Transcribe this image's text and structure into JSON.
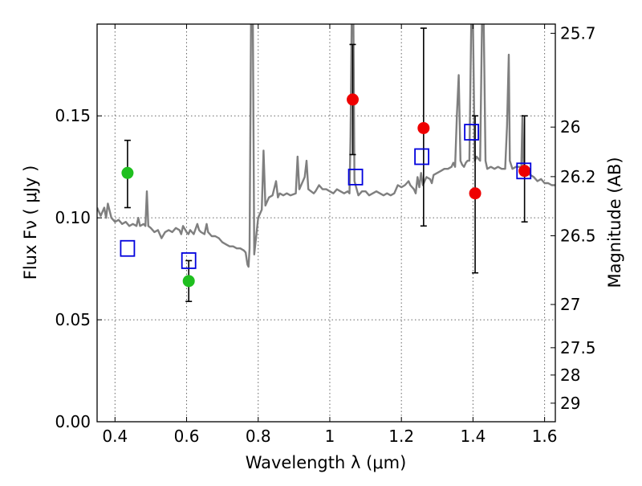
{
  "chart_data": {
    "type": "scatter",
    "xlabel": "Wavelength  λ (μm)",
    "ylabel": "Flux  Fν  ( μJy )",
    "y2label": "Magnitude (AB)",
    "xlim": [
      0.35,
      1.63
    ],
    "ylim": [
      0.0,
      0.195
    ],
    "xticks": [
      0.4,
      0.6,
      0.8,
      1.0,
      1.2,
      1.4,
      1.6
    ],
    "xtick_labels": [
      "0.4",
      "0.6",
      "0.8",
      "1",
      "1.2",
      "1.4",
      "1.6"
    ],
    "yticks": [
      0.0,
      0.05,
      0.1,
      0.15
    ],
    "ytick_labels": [
      "0.00",
      "0.05",
      "0.10",
      "0.15"
    ],
    "magnitude_ticks": [
      {
        "label": "25.7",
        "flux": 0.1905
      },
      {
        "label": "26",
        "flux": 0.1445
      },
      {
        "label": "26.2",
        "flux": 0.1202
      },
      {
        "label": "26.5",
        "flux": 0.0912
      },
      {
        "label": "27",
        "flux": 0.0575
      },
      {
        "label": "27.5",
        "flux": 0.0363
      },
      {
        "label": "28",
        "flux": 0.0229
      },
      {
        "label": "29",
        "flux": 0.0091
      }
    ],
    "grid": true,
    "colors": {
      "green": "#1fbf1f",
      "red": "#ee0000",
      "blue": "#0000dd",
      "spectrum": "#7f7f7f",
      "grid": "#666666"
    },
    "series": [
      {
        "marker": "circle",
        "color": "green",
        "points": [
          {
            "x": 0.435,
            "y": 0.122,
            "yerr_low": 0.105,
            "yerr_high": 0.138
          },
          {
            "x": 0.606,
            "y": 0.069,
            "yerr_low": 0.059,
            "yerr_high": 0.079
          }
        ]
      },
      {
        "marker": "circle",
        "color": "red",
        "points": [
          {
            "x": 1.064,
            "y": 0.158,
            "yerr_low": 0.131,
            "yerr_high": 0.185
          },
          {
            "x": 1.262,
            "y": 0.144,
            "yerr_low": 0.096,
            "yerr_high": 0.193
          },
          {
            "x": 1.406,
            "y": 0.112,
            "yerr_low": 0.073,
            "yerr_high": 0.15
          },
          {
            "x": 1.544,
            "y": 0.123,
            "yerr_low": 0.098,
            "yerr_high": 0.15
          }
        ]
      },
      {
        "marker": "square",
        "color": "blue",
        "points": [
          {
            "x": 0.435,
            "y": 0.085
          },
          {
            "x": 0.606,
            "y": 0.079
          },
          {
            "x": 1.072,
            "y": 0.12
          },
          {
            "x": 1.257,
            "y": 0.13
          },
          {
            "x": 1.396,
            "y": 0.142
          },
          {
            "x": 1.542,
            "y": 0.123
          }
        ]
      }
    ],
    "spectrum": [
      [
        0.35,
        0.105
      ],
      [
        0.36,
        0.101
      ],
      [
        0.37,
        0.105
      ],
      [
        0.375,
        0.1
      ],
      [
        0.38,
        0.107
      ],
      [
        0.39,
        0.1
      ],
      [
        0.4,
        0.098
      ],
      [
        0.41,
        0.099
      ],
      [
        0.42,
        0.097
      ],
      [
        0.43,
        0.098
      ],
      [
        0.44,
        0.096
      ],
      [
        0.45,
        0.097
      ],
      [
        0.46,
        0.096
      ],
      [
        0.465,
        0.1
      ],
      [
        0.47,
        0.096
      ],
      [
        0.48,
        0.097
      ],
      [
        0.485,
        0.096
      ],
      [
        0.489,
        0.113
      ],
      [
        0.493,
        0.096
      ],
      [
        0.5,
        0.095
      ],
      [
        0.51,
        0.093
      ],
      [
        0.52,
        0.094
      ],
      [
        0.53,
        0.09
      ],
      [
        0.54,
        0.093
      ],
      [
        0.55,
        0.094
      ],
      [
        0.56,
        0.093
      ],
      [
        0.57,
        0.095
      ],
      [
        0.58,
        0.094
      ],
      [
        0.585,
        0.092
      ],
      [
        0.59,
        0.096
      ],
      [
        0.6,
        0.093
      ],
      [
        0.605,
        0.092
      ],
      [
        0.61,
        0.094
      ],
      [
        0.62,
        0.092
      ],
      [
        0.63,
        0.097
      ],
      [
        0.635,
        0.094
      ],
      [
        0.64,
        0.093
      ],
      [
        0.65,
        0.092
      ],
      [
        0.656,
        0.097
      ],
      [
        0.66,
        0.093
      ],
      [
        0.67,
        0.091
      ],
      [
        0.68,
        0.091
      ],
      [
        0.69,
        0.09
      ],
      [
        0.7,
        0.088
      ],
      [
        0.71,
        0.087
      ],
      [
        0.72,
        0.086
      ],
      [
        0.73,
        0.086
      ],
      [
        0.74,
        0.085
      ],
      [
        0.75,
        0.085
      ],
      [
        0.76,
        0.084
      ],
      [
        0.765,
        0.083
      ],
      [
        0.77,
        0.077
      ],
      [
        0.773,
        0.076
      ],
      [
        0.776,
        0.085
      ],
      [
        0.78,
        0.195
      ],
      [
        0.785,
        0.195
      ],
      [
        0.789,
        0.082
      ],
      [
        0.8,
        0.1
      ],
      [
        0.81,
        0.104
      ],
      [
        0.815,
        0.133
      ],
      [
        0.82,
        0.106
      ],
      [
        0.83,
        0.11
      ],
      [
        0.84,
        0.111
      ],
      [
        0.85,
        0.118
      ],
      [
        0.855,
        0.11
      ],
      [
        0.86,
        0.112
      ],
      [
        0.87,
        0.111
      ],
      [
        0.88,
        0.112
      ],
      [
        0.89,
        0.111
      ],
      [
        0.905,
        0.112
      ],
      [
        0.91,
        0.13
      ],
      [
        0.915,
        0.114
      ],
      [
        0.93,
        0.12
      ],
      [
        0.935,
        0.128
      ],
      [
        0.94,
        0.114
      ],
      [
        0.955,
        0.112
      ],
      [
        0.96,
        0.113
      ],
      [
        0.97,
        0.116
      ],
      [
        0.98,
        0.114
      ],
      [
        0.99,
        0.114
      ],
      [
        1.0,
        0.113
      ],
      [
        1.01,
        0.112
      ],
      [
        1.02,
        0.114
      ],
      [
        1.03,
        0.113
      ],
      [
        1.04,
        0.112
      ],
      [
        1.05,
        0.113
      ],
      [
        1.055,
        0.112
      ],
      [
        1.058,
        0.14
      ],
      [
        1.061,
        0.195
      ],
      [
        1.066,
        0.195
      ],
      [
        1.069,
        0.118
      ],
      [
        1.08,
        0.111
      ],
      [
        1.09,
        0.113
      ],
      [
        1.1,
        0.113
      ],
      [
        1.11,
        0.111
      ],
      [
        1.12,
        0.112
      ],
      [
        1.13,
        0.113
      ],
      [
        1.14,
        0.112
      ],
      [
        1.15,
        0.111
      ],
      [
        1.16,
        0.112
      ],
      [
        1.17,
        0.111
      ],
      [
        1.18,
        0.112
      ],
      [
        1.185,
        0.114
      ],
      [
        1.19,
        0.116
      ],
      [
        1.2,
        0.115
      ],
      [
        1.21,
        0.116
      ],
      [
        1.215,
        0.117
      ],
      [
        1.22,
        0.118
      ],
      [
        1.225,
        0.116
      ],
      [
        1.235,
        0.114
      ],
      [
        1.24,
        0.112
      ],
      [
        1.245,
        0.12
      ],
      [
        1.25,
        0.115
      ],
      [
        1.255,
        0.122
      ],
      [
        1.26,
        0.116
      ],
      [
        1.27,
        0.12
      ],
      [
        1.28,
        0.119
      ],
      [
        1.285,
        0.117
      ],
      [
        1.29,
        0.121
      ],
      [
        1.3,
        0.122
      ],
      [
        1.31,
        0.123
      ],
      [
        1.32,
        0.124
      ],
      [
        1.33,
        0.124
      ],
      [
        1.34,
        0.125
      ],
      [
        1.345,
        0.127
      ],
      [
        1.35,
        0.125
      ],
      [
        1.355,
        0.15
      ],
      [
        1.36,
        0.17
      ],
      [
        1.365,
        0.128
      ],
      [
        1.37,
        0.126
      ],
      [
        1.375,
        0.125
      ],
      [
        1.38,
        0.127
      ],
      [
        1.385,
        0.128
      ],
      [
        1.39,
        0.128
      ],
      [
        1.395,
        0.195
      ],
      [
        1.4,
        0.195
      ],
      [
        1.405,
        0.128
      ],
      [
        1.41,
        0.13
      ],
      [
        1.42,
        0.128
      ],
      [
        1.425,
        0.195
      ],
      [
        1.43,
        0.195
      ],
      [
        1.435,
        0.128
      ],
      [
        1.44,
        0.124
      ],
      [
        1.45,
        0.125
      ],
      [
        1.46,
        0.124
      ],
      [
        1.47,
        0.125
      ],
      [
        1.48,
        0.124
      ],
      [
        1.49,
        0.124
      ],
      [
        1.495,
        0.145
      ],
      [
        1.5,
        0.18
      ],
      [
        1.503,
        0.128
      ],
      [
        1.51,
        0.124
      ],
      [
        1.52,
        0.125
      ],
      [
        1.53,
        0.125
      ],
      [
        1.535,
        0.124
      ],
      [
        1.538,
        0.15
      ],
      [
        1.542,
        0.123
      ],
      [
        1.55,
        0.122
      ],
      [
        1.56,
        0.121
      ],
      [
        1.57,
        0.12
      ],
      [
        1.58,
        0.118
      ],
      [
        1.59,
        0.119
      ],
      [
        1.6,
        0.117
      ],
      [
        1.61,
        0.117
      ],
      [
        1.62,
        0.116
      ],
      [
        1.63,
        0.116
      ]
    ]
  }
}
